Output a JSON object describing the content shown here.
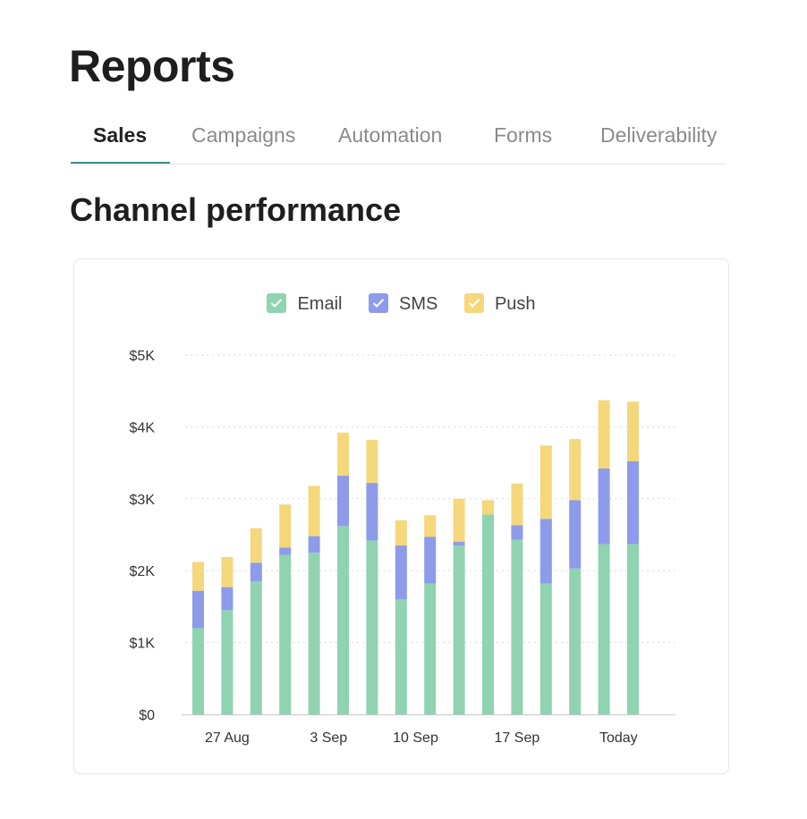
{
  "page": {
    "title": "Reports",
    "section_title": "Channel performance"
  },
  "tabs": [
    {
      "label": "Sales",
      "active": true
    },
    {
      "label": "Campaigns",
      "active": false
    },
    {
      "label": "Automation",
      "active": false
    },
    {
      "label": "Forms",
      "active": false
    },
    {
      "label": "Deliverability",
      "active": false
    }
  ],
  "legend": [
    {
      "label": "Email",
      "color": "#8fd3b0",
      "icon": "check-icon"
    },
    {
      "label": "SMS",
      "color": "#8d9bea",
      "icon": "check-icon"
    },
    {
      "label": "Push",
      "color": "#f5d77c",
      "icon": "check-icon"
    }
  ],
  "colors": {
    "accent": "#3a8f86",
    "email": "#8fd3b0",
    "sms": "#8d9bea",
    "push": "#f5d77c",
    "grid": "#d9d9d9"
  },
  "chart_data": {
    "type": "bar",
    "stacked": true,
    "title": "",
    "xlabel": "",
    "ylabel": "",
    "ylim": [
      0,
      5000
    ],
    "y_ticks": [
      0,
      1000,
      2000,
      3000,
      4000,
      5000
    ],
    "y_tick_labels": [
      "$0",
      "$1K",
      "$2K",
      "$3K",
      "$4K",
      "$5K"
    ],
    "grid": true,
    "legend_position": "top-center",
    "x_tick_labels": [
      {
        "label": "27 Aug",
        "index": 1
      },
      {
        "label": "3 Sep",
        "index": 4.5
      },
      {
        "label": "10 Sep",
        "index": 7.5
      },
      {
        "label": "17 Sep",
        "index": 11
      },
      {
        "label": "Today",
        "index": 14.5
      }
    ],
    "series": [
      {
        "name": "Email",
        "values": [
          1200,
          1450,
          1850,
          2220,
          2250,
          2620,
          2420,
          1600,
          1820,
          2350,
          2780,
          2430,
          1820,
          2030,
          2370,
          2370
        ]
      },
      {
        "name": "SMS",
        "values": [
          520,
          320,
          260,
          100,
          230,
          700,
          800,
          750,
          650,
          50,
          0,
          200,
          900,
          950,
          1050,
          1150
        ]
      },
      {
        "name": "Push",
        "values": [
          400,
          420,
          480,
          600,
          700,
          600,
          600,
          350,
          300,
          600,
          200,
          580,
          1020,
          850,
          950,
          830
        ]
      }
    ]
  }
}
